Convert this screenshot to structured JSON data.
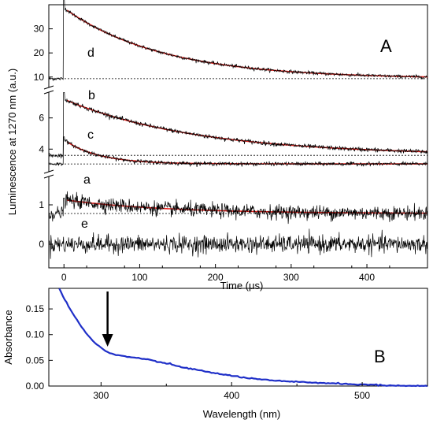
{
  "chart_data": [
    {
      "panel": "A",
      "type": "line",
      "panel_label": "A",
      "xlabel": "Time (μs)",
      "ylabel": "Luminescence at 1270 nm (a.u.)",
      "xlim": [
        -20,
        480
      ],
      "xticks": [
        0,
        100,
        200,
        300,
        400
      ],
      "axis_breaks": true,
      "grid": false,
      "colors": {
        "trace": "#000000",
        "fit": "#e8201c",
        "baseline": "#000000"
      },
      "subranges": [
        {
          "name": "top",
          "ylim": [
            6,
            40
          ],
          "yticks": [
            10,
            20,
            30
          ]
        },
        {
          "name": "middle",
          "ylim": [
            2.6,
            7.6
          ],
          "yticks": [
            4,
            6
          ]
        },
        {
          "name": "bottom",
          "ylim": [
            -0.6,
            1.7
          ],
          "yticks": [
            0,
            1
          ]
        }
      ],
      "series": [
        {
          "label": "d",
          "subrange": "top",
          "baseline": 9.3,
          "amplitude": 29.3,
          "tau_us": 130,
          "noise": 0.35
        },
        {
          "label": "b",
          "subrange": "middle",
          "baseline": 3.6,
          "amplitude": 3.6,
          "tau_us": 175,
          "noise": 0.07
        },
        {
          "label": "c",
          "subrange": "middle",
          "baseline": 3.05,
          "amplitude": 1.55,
          "tau_us": 45,
          "noise": 0.06
        },
        {
          "label": "a",
          "subrange": "bottom",
          "baseline": 0.78,
          "amplitude": 0.35,
          "tau_us": 130,
          "noise": 0.09
        },
        {
          "label": "e",
          "subrange": "bottom",
          "baseline": 0.0,
          "amplitude": 0.0,
          "tau_us": 0,
          "noise": 0.11
        }
      ]
    },
    {
      "panel": "B",
      "type": "line",
      "panel_label": "B",
      "xlabel": "Wavelength (nm)",
      "ylabel": "Absorbance",
      "xlim": [
        260,
        550
      ],
      "ylim": [
        0,
        0.19
      ],
      "xticks": [
        300,
        400,
        500
      ],
      "yticks": [
        "0.00",
        "0.05",
        "0.10",
        "0.15"
      ],
      "grid": false,
      "color": "#1f2fc8",
      "x": [
        268,
        275,
        280,
        285,
        290,
        295,
        300,
        305,
        310,
        320,
        330,
        340,
        350,
        360,
        370,
        380,
        400,
        420,
        440,
        460,
        480,
        500,
        520,
        550
      ],
      "y": [
        0.19,
        0.155,
        0.135,
        0.115,
        0.098,
        0.085,
        0.074,
        0.066,
        0.061,
        0.057,
        0.054,
        0.049,
        0.044,
        0.038,
        0.033,
        0.028,
        0.02,
        0.013,
        0.009,
        0.007,
        0.005,
        0.003,
        0.001,
        0.0
      ],
      "arrow_at_x": 305
    }
  ]
}
